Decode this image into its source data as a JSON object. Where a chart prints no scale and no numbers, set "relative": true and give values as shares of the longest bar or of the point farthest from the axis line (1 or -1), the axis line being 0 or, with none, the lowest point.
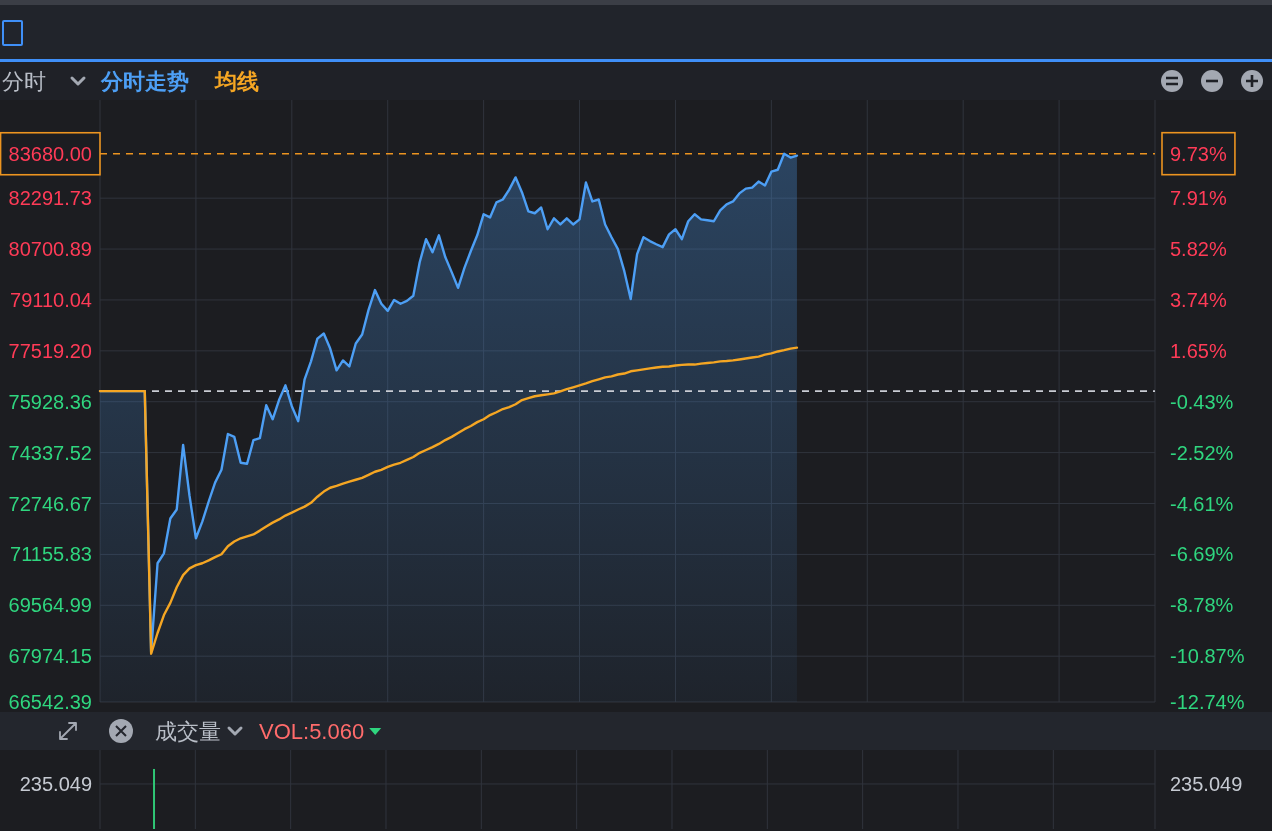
{
  "chart_data": [
    {
      "type": "line",
      "title": "分时",
      "legend": "top left",
      "grid": true,
      "categories": [
        null,
        null,
        null,
        null,
        null,
        null,
        null,
        null,
        null,
        null,
        null,
        null,
        null,
        null,
        null,
        null,
        null,
        null,
        null,
        null,
        null,
        null,
        null,
        null,
        null,
        null,
        null,
        null,
        null,
        null,
        null,
        null,
        null,
        null,
        null,
        null,
        null,
        null,
        null,
        null,
        null,
        null,
        null,
        null,
        null,
        null,
        null,
        null,
        null,
        null,
        null,
        null,
        null,
        null,
        null,
        null,
        null,
        null,
        null,
        null,
        null,
        null,
        null,
        null,
        null,
        null,
        null,
        null,
        null,
        null,
        null,
        null,
        null,
        null,
        null,
        null,
        null,
        null,
        null,
        null,
        null,
        null,
        null,
        null,
        null,
        null,
        null,
        null,
        null,
        null,
        null,
        null,
        null,
        null,
        null,
        null,
        null,
        null,
        null,
        null,
        null,
        null,
        null,
        null,
        null,
        null,
        null,
        null,
        null,
        null,
        null,
        null,
        null,
        null,
        null,
        null,
        null,
        null,
        null,
        null,
        null,
        null,
        null,
        null,
        null,
        null,
        null,
        null,
        null,
        null,
        null,
        null,
        null,
        null,
        null,
        null,
        null,
        null,
        null,
        null,
        null,
        null,
        null,
        null,
        null,
        null,
        null,
        null,
        null,
        null,
        null,
        null,
        null,
        null,
        null,
        null,
        null,
        null,
        null,
        null,
        null,
        null,
        null,
        null,
        null,
        null
      ],
      "series": [
        {
          "name": "分时走势",
          "type": "area",
          "color": "#4d9ff5",
          "values": [
            76260,
            76260,
            76260,
            76260,
            76260,
            76260,
            76260,
            76260,
            68110,
            70880,
            71190,
            72280,
            72560,
            74580,
            72990,
            71660,
            72180,
            72810,
            73400,
            73800,
            74920,
            74830,
            74020,
            73990,
            74730,
            74790,
            75820,
            75380,
            75980,
            76440,
            75790,
            75320,
            76630,
            77190,
            77900,
            78060,
            77590,
            76910,
            77220,
            77030,
            77750,
            78030,
            78800,
            79420,
            78990,
            78770,
            79110,
            78990,
            79080,
            79240,
            80290,
            81010,
            80600,
            81130,
            80450,
            79980,
            79490,
            80110,
            80640,
            81130,
            81790,
            81690,
            82160,
            82250,
            82560,
            82940,
            82470,
            81880,
            81820,
            82000,
            81320,
            81660,
            81470,
            81660,
            81470,
            81630,
            82780,
            82190,
            82250,
            81470,
            81070,
            80700,
            80010,
            79140,
            80540,
            81070,
            80950,
            80850,
            80760,
            81160,
            81320,
            81010,
            81570,
            81790,
            81630,
            81600,
            81570,
            81910,
            82100,
            82190,
            82440,
            82590,
            82620,
            82810,
            82690,
            83120,
            83180,
            83680,
            83560,
            83620,
            null,
            null,
            null,
            null,
            null,
            null,
            null,
            null,
            null,
            null,
            null,
            null,
            null,
            null,
            null,
            null,
            null,
            null,
            null,
            null,
            null,
            null,
            null,
            null,
            null,
            null,
            null,
            null,
            null,
            null,
            null,
            null,
            null,
            null,
            null,
            null,
            null,
            null,
            null,
            null,
            null,
            null,
            null,
            null,
            null,
            null,
            null,
            null,
            null,
            null,
            null,
            null,
            null,
            null,
            null,
            null
          ]
        },
        {
          "name": "均线",
          "type": "line",
          "color": "#f5a623",
          "values": [
            76260,
            76260,
            76260,
            76260,
            76260,
            76260,
            76260,
            76260,
            68050,
            68700,
            69260,
            69640,
            70130,
            70510,
            70720,
            70820,
            70880,
            70970,
            71070,
            71160,
            71410,
            71560,
            71660,
            71720,
            71780,
            71900,
            72030,
            72150,
            72250,
            72370,
            72460,
            72560,
            72650,
            72770,
            72960,
            73120,
            73240,
            73300,
            73370,
            73430,
            73490,
            73550,
            73640,
            73740,
            73800,
            73890,
            73960,
            74020,
            74110,
            74200,
            74330,
            74420,
            74510,
            74610,
            74730,
            74830,
            74950,
            75070,
            75170,
            75290,
            75380,
            75510,
            75600,
            75700,
            75760,
            75850,
            75980,
            76040,
            76100,
            76130,
            76160,
            76190,
            76250,
            76320,
            76380,
            76440,
            76500,
            76570,
            76630,
            76690,
            76720,
            76780,
            76810,
            76880,
            76910,
            76940,
            76970,
            77000,
            77020,
            77030,
            77060,
            77080,
            77090,
            77090,
            77120,
            77140,
            77160,
            77190,
            77200,
            77220,
            77250,
            77280,
            77310,
            77340,
            77400,
            77440,
            77500,
            77540,
            77590,
            77620,
            null,
            null,
            null,
            null,
            null,
            null,
            null,
            null,
            null,
            null,
            null,
            null,
            null,
            null,
            null,
            null,
            null,
            null,
            null,
            null,
            null,
            null,
            null,
            null,
            null,
            null,
            null,
            null,
            null,
            null,
            null,
            null,
            null,
            null,
            null,
            null,
            null,
            null,
            null,
            null,
            null,
            null,
            null,
            null,
            null,
            null,
            null,
            null,
            null,
            null,
            null,
            null,
            null,
            null,
            null,
            null
          ]
        }
      ],
      "ylim": [
        66542.39,
        85360
      ],
      "yticks": [
        82291.73,
        80700.89,
        79110.04,
        {
          "value": 77519.2,
          "label": "77519.20"
        },
        75928.36,
        74337.52,
        72746.67,
        71155.83,
        69564.99,
        67974.15,
        66542.39
      ],
      "y2lim": [
        -12.74,
        11.93
      ],
      "y2ticks": [
        {
          "value": 9.73,
          "label": "9.73%"
        },
        {
          "value": 7.91,
          "label": "7.91%"
        },
        {
          "value": 5.82,
          "label": "5.82%"
        },
        {
          "value": 3.74,
          "label": "3.74%"
        },
        {
          "value": 1.65,
          "label": "1.65%"
        },
        {
          "value": -0.43,
          "label": "-0.43%"
        },
        {
          "value": -2.52,
          "label": "-2.52%"
        },
        {
          "value": -4.61,
          "label": "-4.61%"
        },
        {
          "value": -6.69,
          "label": "-6.69%"
        },
        {
          "value": -8.78,
          "label": "-8.78%"
        },
        {
          "value": -10.87,
          "label": "-10.87%"
        },
        {
          "value": -12.74,
          "label": "-12.74%"
        }
      ],
      "ref_lines": [
        {
          "axis": "y",
          "value": 83680,
          "label": "83680.00",
          "color": "#ec9420",
          "line_style": "dashed"
        },
        {
          "axis": "y2",
          "value": 0,
          "color": "#c9ccd3",
          "line_style": "dashed"
        }
      ]
    },
    {
      "type": "bar",
      "title": "成交量",
      "annotations": [
        "VOL:5.060",
        "235.049",
        "235.049"
      ],
      "relative": true,
      "grid": "x",
      "color": "#2fc675",
      "categories": [
        null,
        null,
        null,
        null,
        null,
        null,
        null,
        null,
        null,
        null,
        null,
        null,
        null,
        null,
        null,
        null,
        null,
        null,
        null,
        null,
        null,
        null,
        null,
        null,
        null,
        null,
        null,
        null,
        null,
        null,
        null,
        null,
        null,
        null,
        null,
        null,
        null,
        null,
        null,
        null,
        null,
        null,
        null,
        null,
        null,
        null,
        null,
        null,
        null,
        null,
        null,
        null,
        null,
        null,
        null,
        null,
        null,
        null,
        null,
        null,
        null,
        null,
        null,
        null,
        null,
        null,
        null,
        null,
        null,
        null,
        null,
        null,
        null,
        null,
        null,
        null,
        null,
        null,
        null,
        null,
        null,
        null,
        null,
        null,
        null,
        null,
        null,
        null,
        null,
        null,
        null,
        null,
        null,
        null,
        null,
        null,
        null,
        null,
        null,
        null,
        null,
        null,
        null,
        null,
        null,
        null,
        null,
        null,
        null,
        null,
        null,
        null,
        null,
        null,
        null,
        null,
        null,
        null,
        null,
        null,
        null,
        null,
        null,
        null,
        null,
        null,
        null,
        null,
        null,
        null,
        null,
        null,
        null,
        null,
        null,
        null,
        null,
        null,
        null,
        null,
        null,
        null,
        null,
        null,
        null,
        null,
        null,
        null,
        null,
        null,
        null,
        null,
        null,
        null,
        null,
        null,
        null,
        null,
        null,
        null,
        null,
        null,
        null,
        null,
        null,
        null
      ],
      "values": [
        null,
        null,
        null,
        null,
        null,
        null,
        null,
        null,
        1,
        null,
        null,
        null,
        null,
        null,
        null,
        null,
        null,
        null,
        null,
        null,
        null,
        null,
        null,
        null,
        null,
        null,
        null,
        null,
        null,
        null,
        null,
        null,
        null,
        null,
        null,
        null,
        null,
        null,
        null,
        null,
        null,
        null,
        null,
        null,
        null,
        null,
        null,
        null,
        null,
        null,
        null,
        null,
        null,
        null,
        null,
        null,
        null,
        null,
        null,
        null,
        null,
        null,
        null,
        null,
        null,
        null,
        null,
        null,
        null,
        null,
        null,
        null,
        null,
        null,
        null,
        null,
        null,
        null,
        null,
        null,
        null,
        null,
        null,
        null,
        null,
        null,
        null,
        null,
        null,
        null,
        null,
        null,
        null,
        null,
        null,
        null,
        null,
        null,
        null,
        null,
        null,
        null,
        null,
        null,
        null,
        null,
        null,
        null,
        null,
        null,
        null,
        null,
        null,
        null,
        null,
        null,
        null,
        null,
        null,
        null,
        null,
        null,
        null,
        null,
        null,
        null,
        null,
        null,
        null,
        null,
        null,
        null,
        null,
        null,
        null,
        null,
        null,
        null,
        null,
        null,
        null,
        null,
        null,
        null,
        null,
        null,
        null,
        null,
        null,
        null,
        null,
        null,
        null,
        null,
        null,
        null,
        null,
        null,
        null,
        null,
        null,
        null,
        null,
        null,
        null,
        null
      ],
      "ref_lines": [
        {
          "axis": "y",
          "value": 0.75
        }
      ]
    }
  ]
}
